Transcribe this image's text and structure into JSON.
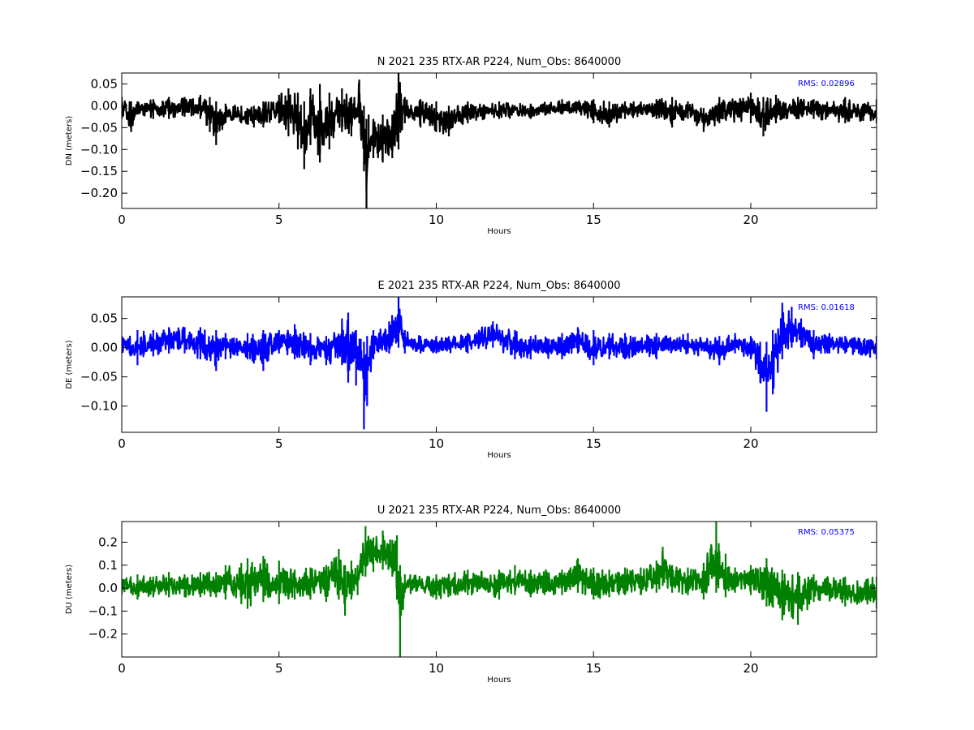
{
  "chart_data": [
    {
      "type": "line",
      "title": "N 2021 235 RTX-AR  P224, Num_Obs: 8640000",
      "xlabel": "Hours",
      "ylabel": "DN (meters)",
      "xlim": [
        0,
        24
      ],
      "ylim": [
        -0.235,
        0.075
      ],
      "xticks": [
        "0",
        "5",
        "10",
        "15",
        "20"
      ],
      "yticks": [
        "0.05",
        "0.00",
        "−0.05",
        "−0.10",
        "−0.15",
        "−0.20"
      ],
      "annotation": "RMS:  0.02896",
      "grid": false,
      "series": [
        {
          "color": "#000000",
          "envelope": {
            "x": [
              0,
              0.3,
              0.5,
              1,
              1.5,
              2,
              2.5,
              2.8,
              3.0,
              3.3,
              3.8,
              4.2,
              4.5,
              5.0,
              5.3,
              5.6,
              5.8,
              6.0,
              6.3,
              6.6,
              7.0,
              7.3,
              7.55,
              7.7,
              7.78,
              7.85,
              8.0,
              8.3,
              8.6,
              8.8,
              9.0,
              9.5,
              10.0,
              10.4,
              11,
              12,
              13,
              14,
              15,
              15.5,
              16,
              17,
              17.5,
              18,
              18.5,
              19,
              20,
              20.4,
              20.8,
              21.5,
              22,
              23,
              24
            ],
            "upper": [
              0.02,
              0.01,
              0.01,
              0.015,
              0.02,
              0.02,
              0.025,
              0.02,
              0.01,
              0.005,
              0.0,
              0.0,
              0.01,
              0.025,
              0.04,
              0.03,
              0.01,
              0.04,
              0.05,
              0.03,
              0.04,
              0.02,
              0.06,
              0.0,
              -0.03,
              -0.02,
              -0.03,
              -0.02,
              -0.02,
              0.075,
              0.02,
              0.015,
              0.01,
              0.0,
              0.01,
              0.01,
              0.005,
              0.015,
              0.015,
              0.01,
              0.01,
              0.015,
              0.02,
              0.01,
              -0.005,
              0.02,
              0.03,
              0.02,
              0.025,
              0.02,
              0.015,
              0.02,
              0.015
            ],
            "lower": [
              -0.03,
              -0.06,
              -0.02,
              -0.03,
              -0.03,
              -0.025,
              -0.03,
              -0.06,
              -0.09,
              -0.04,
              -0.04,
              -0.05,
              -0.05,
              -0.04,
              -0.07,
              -0.1,
              -0.145,
              -0.09,
              -0.13,
              -0.1,
              -0.06,
              -0.07,
              -0.04,
              -0.15,
              -0.235,
              -0.12,
              -0.12,
              -0.13,
              -0.12,
              -0.1,
              -0.04,
              -0.05,
              -0.06,
              -0.07,
              -0.04,
              -0.03,
              -0.03,
              -0.02,
              -0.04,
              -0.05,
              -0.03,
              -0.03,
              -0.05,
              -0.03,
              -0.06,
              -0.04,
              -0.04,
              -0.07,
              -0.04,
              -0.03,
              -0.03,
              -0.04,
              -0.04
            ]
          }
        }
      ]
    },
    {
      "type": "line",
      "title": "E 2021 235 RTX-AR  P224, Num_Obs: 8640000",
      "xlabel": "Hours",
      "ylabel": "DE (meters)",
      "xlim": [
        0,
        24
      ],
      "ylim": [
        -0.145,
        0.087
      ],
      "xticks": [
        "0",
        "5",
        "10",
        "15",
        "20"
      ],
      "yticks": [
        "0.05",
        "0.00",
        "−0.05",
        "−0.10"
      ],
      "annotation": "RMS:  0.01618",
      "grid": false,
      "series": [
        {
          "color": "#0000ff",
          "envelope": {
            "x": [
              0,
              0.5,
              1,
              1.5,
              2,
              2.5,
              3.0,
              3.3,
              4,
              4.5,
              5.0,
              5.5,
              6,
              6.5,
              7.0,
              7.2,
              7.45,
              7.6,
              7.7,
              7.8,
              8.0,
              8.5,
              8.8,
              9.0,
              9.5,
              10,
              11,
              11.8,
              12.5,
              13,
              14,
              14.5,
              15,
              15.5,
              16,
              17,
              18,
              19,
              19.5,
              20.0,
              20.3,
              20.5,
              20.7,
              21.0,
              21.3,
              21.6,
              22,
              22.5,
              23,
              24
            ],
            "upper": [
              0.02,
              0.03,
              0.03,
              0.035,
              0.035,
              0.035,
              0.03,
              0.025,
              0.025,
              0.03,
              0.03,
              0.04,
              0.025,
              0.02,
              0.05,
              0.06,
              0.03,
              0.015,
              0.01,
              0.02,
              0.03,
              0.045,
              0.087,
              0.03,
              0.02,
              0.02,
              0.025,
              0.045,
              0.03,
              0.02,
              0.025,
              0.035,
              0.03,
              0.025,
              0.025,
              0.025,
              0.025,
              0.02,
              0.025,
              0.02,
              0.01,
              0.01,
              0.03,
              0.077,
              0.07,
              0.05,
              0.03,
              0.025,
              0.02,
              0.02
            ],
            "lower": [
              -0.01,
              -0.03,
              -0.015,
              -0.01,
              -0.01,
              -0.02,
              -0.04,
              -0.02,
              -0.02,
              -0.04,
              -0.01,
              -0.02,
              -0.03,
              -0.03,
              -0.03,
              -0.06,
              -0.065,
              -0.04,
              -0.14,
              -0.1,
              -0.02,
              -0.01,
              0.0,
              -0.01,
              -0.01,
              -0.01,
              -0.01,
              0.0,
              -0.02,
              -0.02,
              -0.02,
              -0.01,
              -0.03,
              -0.02,
              -0.02,
              -0.02,
              -0.01,
              -0.03,
              -0.01,
              -0.02,
              -0.06,
              -0.11,
              -0.08,
              -0.02,
              0.0,
              0.0,
              -0.02,
              -0.01,
              -0.01,
              -0.02
            ]
          }
        }
      ]
    },
    {
      "type": "line",
      "title": "U 2021 235 RTX-AR  P224, Num_Obs: 8640000",
      "xlabel": "Hours",
      "ylabel": "DU (meters)",
      "xlim": [
        0,
        24
      ],
      "ylim": [
        -0.3,
        0.29
      ],
      "xticks": [
        "0",
        "5",
        "10",
        "15",
        "20"
      ],
      "yticks": [
        "0.2",
        "0.1",
        "0.0",
        "−0.1",
        "−0.2"
      ],
      "annotation": "RMS:  0.05375",
      "grid": false,
      "series": [
        {
          "color": "#008000",
          "envelope": {
            "x": [
              0,
              0.5,
              1,
              1.5,
              2,
              2.5,
              3,
              3.3,
              3.8,
              4,
              4.5,
              5,
              5.5,
              6,
              6.5,
              6.9,
              7.1,
              7.3,
              7.5,
              7.75,
              8,
              8.3,
              8.6,
              8.75,
              8.85,
              9.0,
              10,
              11,
              12,
              12.5,
              13,
              14,
              14.5,
              15,
              15.5,
              16,
              16.5,
              17.0,
              17.2,
              17.5,
              18,
              18.5,
              18.9,
              19.2,
              19.5,
              20,
              20.5,
              21,
              21.5,
              22,
              23,
              24
            ],
            "upper": [
              0.04,
              0.06,
              0.05,
              0.07,
              0.06,
              0.07,
              0.07,
              0.1,
              0.11,
              0.13,
              0.14,
              0.12,
              0.08,
              0.09,
              0.1,
              0.17,
              0.1,
              0.12,
              0.1,
              0.27,
              0.22,
              0.25,
              0.21,
              0.23,
              0.1,
              0.06,
              0.06,
              0.08,
              0.08,
              0.1,
              0.08,
              0.08,
              0.13,
              0.09,
              0.08,
              0.09,
              0.09,
              0.12,
              0.18,
              0.1,
              0.09,
              0.11,
              0.29,
              0.15,
              0.09,
              0.1,
              0.13,
              0.08,
              0.07,
              0.06,
              0.05,
              0.05
            ],
            "lower": [
              -0.03,
              -0.05,
              -0.04,
              -0.04,
              -0.04,
              -0.04,
              -0.04,
              -0.05,
              -0.07,
              -0.09,
              -0.06,
              -0.07,
              -0.05,
              -0.05,
              -0.06,
              -0.05,
              -0.12,
              -0.05,
              -0.03,
              0.05,
              0.07,
              0.08,
              0.05,
              -0.05,
              -0.3,
              -0.02,
              -0.05,
              -0.03,
              -0.05,
              -0.03,
              -0.04,
              -0.03,
              -0.02,
              -0.05,
              -0.04,
              -0.03,
              -0.03,
              -0.02,
              0.01,
              -0.02,
              -0.03,
              -0.05,
              -0.02,
              -0.04,
              -0.02,
              -0.03,
              -0.08,
              -0.14,
              -0.16,
              -0.06,
              -0.08,
              -0.09
            ]
          }
        }
      ]
    }
  ]
}
